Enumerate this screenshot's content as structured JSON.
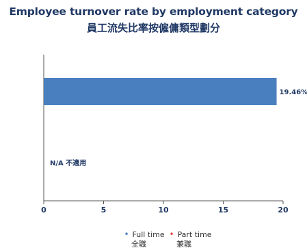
{
  "title_en": "Employee turnover rate by employment category",
  "title_zh": "員工流失比率按僱傭類型劃分",
  "chart_data": {
    "type": "bar",
    "orientation": "horizontal",
    "categories": [
      "Full time",
      "Part time"
    ],
    "series": [
      {
        "name": "Full time 全職",
        "color": "#4a7fbf",
        "values": [
          19.46,
          null
        ]
      }
    ],
    "data_labels": [
      "19.46%",
      "N/A 不適用"
    ],
    "xlim": [
      0,
      20
    ],
    "x_ticks": [
      "0",
      "5",
      "10",
      "15",
      "20"
    ],
    "grid": false,
    "legend_placement": "bottom"
  },
  "legend": [
    {
      "label_en": "Full time",
      "label_zh": "全職",
      "color": "#4a7fbf",
      "marker": "•"
    },
    {
      "label_en": "Part time",
      "label_zh": "兼職",
      "color": "#e8453c",
      "marker": "•"
    }
  ]
}
